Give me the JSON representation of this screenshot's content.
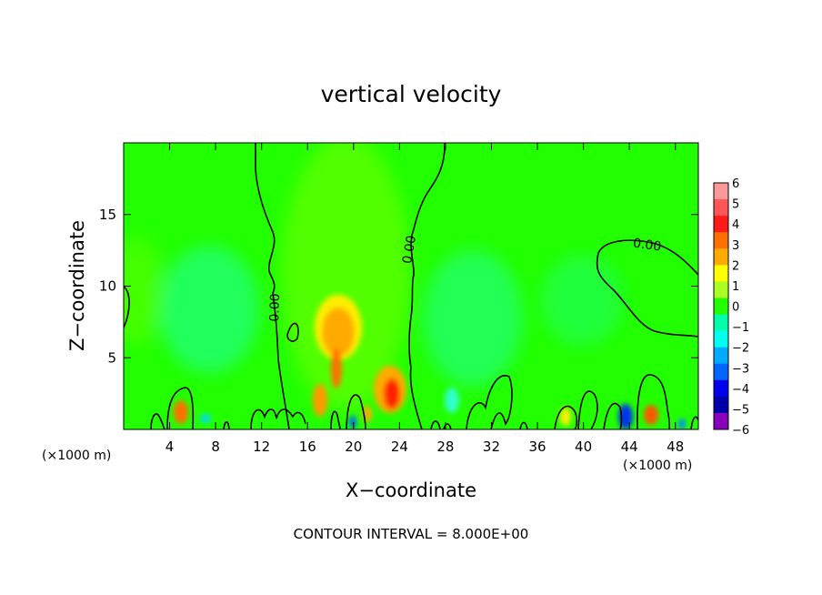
{
  "chart_data": {
    "type": "heatmap",
    "title": "vertical velocity",
    "xlabel": "X−coordinate",
    "ylabel": "Z−coordinate",
    "x_unit": "(×1000 m)",
    "x_unit_right": "(×1000 m)",
    "footer": "CONTOUR INTERVAL = 8.000E+00",
    "xlim": [
      0,
      50
    ],
    "ylim": [
      0,
      20
    ],
    "x_ticks": [
      4,
      8,
      12,
      16,
      20,
      24,
      28,
      32,
      36,
      40,
      44,
      48
    ],
    "x_tick_labels": [
      "4",
      "8",
      "12",
      "16",
      "20",
      "24",
      "28",
      "32",
      "36",
      "40",
      "44",
      "48"
    ],
    "y_ticks": [
      5,
      10,
      15
    ],
    "y_tick_labels": [
      "5",
      "10",
      "15"
    ],
    "contour_labels": [
      {
        "text": "0.00",
        "x": 13.5,
        "y": 8.5
      },
      {
        "text": "0.00",
        "x": 25.2,
        "y": 12.5
      },
      {
        "text": "0.00",
        "x": 45.5,
        "y": 12.6
      }
    ],
    "colorbar": {
      "levels": [
        6,
        5,
        4,
        3,
        2,
        1,
        0,
        -1,
        -2,
        -3,
        -4,
        -5,
        -6
      ],
      "labels": [
        "6",
        "5",
        "4",
        "3",
        "2",
        "1",
        "0",
        "−1",
        "−2",
        "−3",
        "−4",
        "−5",
        "−6"
      ],
      "colors": [
        "#ff9999",
        "#ff5555",
        "#ff1a1a",
        "#ff7000",
        "#ffaa00",
        "#ffff00",
        "#aaff22",
        "#22ff00",
        "#00ffaa",
        "#00ffee",
        "#00aaff",
        "#0066ff",
        "#0000ee",
        "#0000aa",
        "#8800bb"
      ]
    },
    "features": [
      {
        "kind": "updraft",
        "x": 18.8,
        "y": 7.3,
        "value": 3
      },
      {
        "kind": "updraft",
        "x": 18.5,
        "y": 4.8,
        "value": 4
      },
      {
        "kind": "updraft",
        "x": 23.2,
        "y": 2.4,
        "value": 5
      },
      {
        "kind": "updraft",
        "x": 17.2,
        "y": 2.2,
        "value": 3
      },
      {
        "kind": "updraft",
        "x": 5.0,
        "y": 1.2,
        "value": 4
      },
      {
        "kind": "updraft",
        "x": 45.8,
        "y": 1.0,
        "value": 5
      },
      {
        "kind": "downdraft",
        "x": 43.8,
        "y": 1.0,
        "value": -5
      },
      {
        "kind": "downdraft",
        "x": 20.0,
        "y": 0.6,
        "value": -4
      },
      {
        "kind": "downdraft",
        "x": 48.5,
        "y": 0.5,
        "value": -3
      },
      {
        "kind": "downdraft",
        "x": 7.5,
        "y": 7.0,
        "value": -1
      },
      {
        "kind": "downdraft",
        "x": 31.0,
        "y": 6.0,
        "value": -1
      }
    ],
    "grid": false,
    "legend": "colorbar-right"
  }
}
